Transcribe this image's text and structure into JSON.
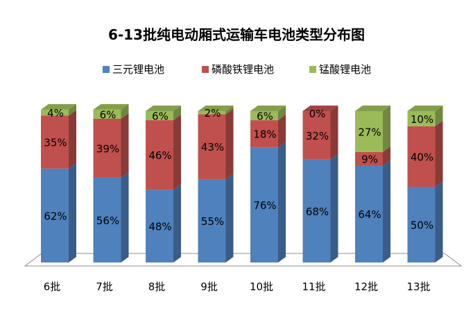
{
  "chart_data": {
    "type": "bar",
    "stacked": true,
    "percent": true,
    "three_d": true,
    "title": "6-13批纯电动厢式运输车电池类型分布图",
    "xlabel": "",
    "ylabel": "",
    "ylim": [
      0,
      100
    ],
    "grid": false,
    "legend_position": "top",
    "categories": [
      "6批",
      "7批",
      "8批",
      "9批",
      "10批",
      "11批",
      "12批",
      "13批"
    ],
    "series": [
      {
        "name": "三元锂电池",
        "color": "#4F81BD",
        "values": [
          62,
          56,
          48,
          55,
          76,
          68,
          64,
          50
        ],
        "labels": [
          "62%",
          "56%",
          "48%",
          "55%",
          "76%",
          "68%",
          "64%",
          "50%"
        ]
      },
      {
        "name": "磷酸铁锂电池",
        "color": "#C0504D",
        "values": [
          35,
          39,
          46,
          43,
          18,
          32,
          9,
          40
        ],
        "labels": [
          "35%",
          "39%",
          "46%",
          "43%",
          "18%",
          "32%",
          "9%",
          "40%"
        ]
      },
      {
        "name": "锰酸锂电池",
        "color": "#9BBB59",
        "values": [
          4,
          6,
          6,
          2,
          6,
          0,
          27,
          10
        ],
        "labels": [
          "4%",
          "6%",
          "6%",
          "2%",
          "6%",
          "0%",
          "27%",
          "10%"
        ]
      }
    ]
  }
}
